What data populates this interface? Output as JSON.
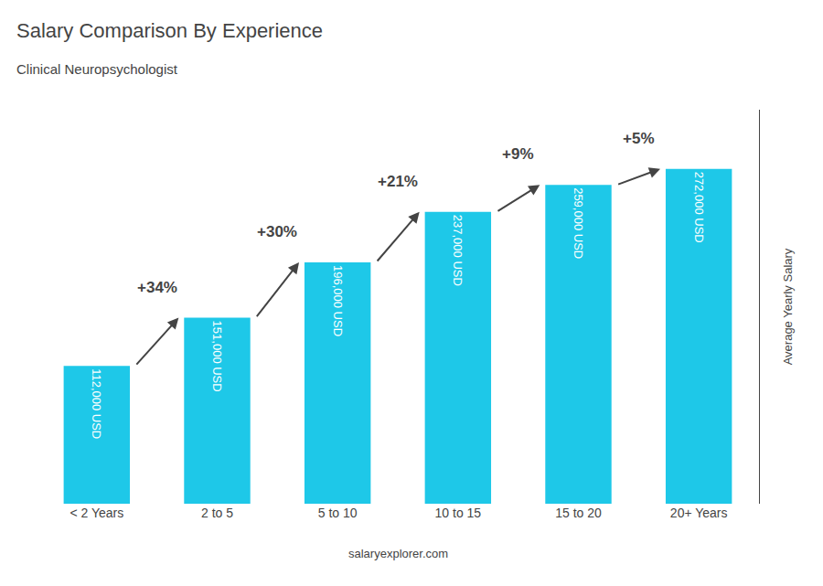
{
  "chart_data": {
    "type": "bar",
    "title": "Salary Comparison By Experience",
    "subtitle": "Clinical Neuropsychologist",
    "categories": [
      "< 2 Years",
      "2 to 5",
      "5 to 10",
      "10 to 15",
      "15 to 20",
      "20+ Years"
    ],
    "values": [
      112000,
      151000,
      196000,
      237000,
      259000,
      272000
    ],
    "value_labels": [
      "112,000 USD",
      "151,000 USD",
      "196,000 USD",
      "237,000 USD",
      "259,000 USD",
      "272,000 USD"
    ],
    "data_labels": true,
    "color": "#1ec8e8",
    "annotations": [
      "+34%",
      "+30%",
      "+21%",
      "+9%",
      "+5%"
    ],
    "ylabel": "Average Yearly Salary",
    "footer": "salaryexplorer.com",
    "ylim": [
      0,
      320000
    ],
    "grid": false,
    "tick_labels": "x"
  }
}
